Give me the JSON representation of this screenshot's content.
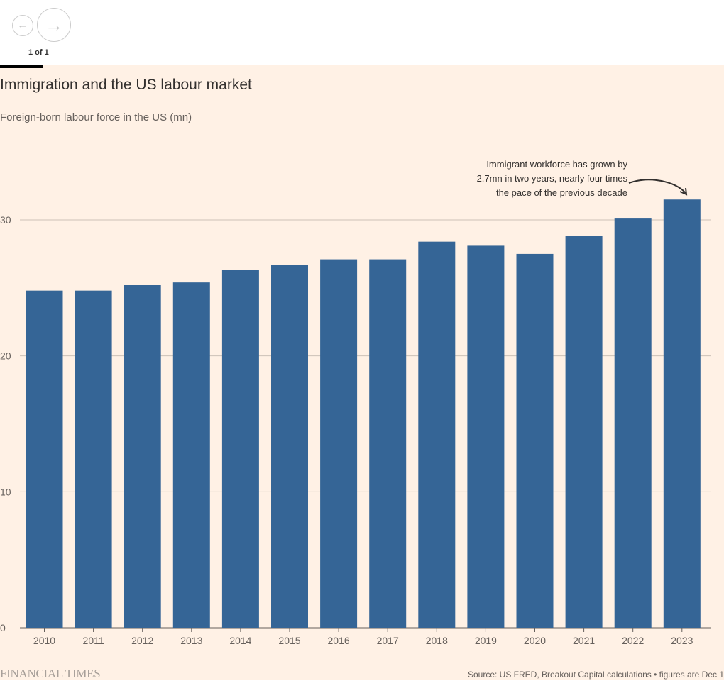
{
  "nav": {
    "prev_icon": "←",
    "next_icon": "→",
    "pager": "1 of 1"
  },
  "colors": {
    "bar": "#356596",
    "background": "#fff1e5",
    "grid": "#ccc1b7",
    "text": "#33302e"
  },
  "chart_data": {
    "type": "bar",
    "title": "Immigration and the US labour market",
    "subtitle": "Foreign-born labour force in the US (mn)",
    "xlabel": "",
    "ylabel": "",
    "categories": [
      "2010",
      "2011",
      "2012",
      "2013",
      "2014",
      "2015",
      "2016",
      "2017",
      "2018",
      "2019",
      "2020",
      "2021",
      "2022",
      "2023"
    ],
    "values": [
      24.8,
      24.8,
      25.2,
      25.4,
      26.3,
      26.7,
      27.1,
      27.1,
      28.4,
      28.1,
      27.5,
      28.8,
      30.1,
      31.5
    ],
    "yticks": [
      0,
      10,
      20,
      30
    ],
    "ytick_labels": [
      "0",
      "10",
      "20",
      "30"
    ],
    "ylim": [
      0,
      30
    ],
    "grid": true,
    "annotation": {
      "text": "Immigrant workforce has grown by\n2.7mn in two years, nearly four times\nthe pace of the previous decade",
      "target": "2023"
    }
  },
  "footer": {
    "brand": "FINANCIAL TIMES",
    "source": "Source: US FRED, Breakout Capital calculations • figures are Dec 1"
  }
}
